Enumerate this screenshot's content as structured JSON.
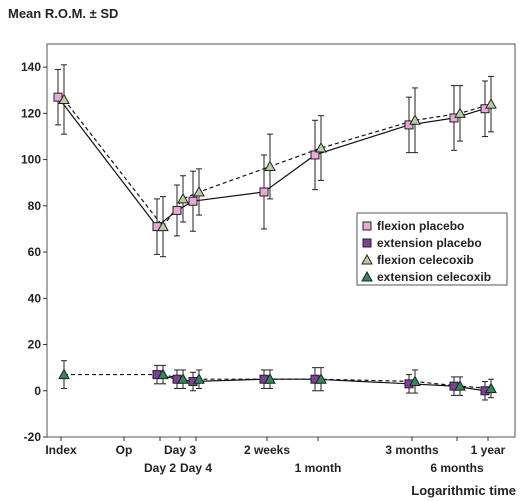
{
  "chart_data": {
    "type": "line",
    "title": "Mean R.O.M. ± SD",
    "xlabel": "Logarithmic time",
    "ylabel": "",
    "ylim": [
      -20,
      150
    ],
    "y_ticks": [
      "-20",
      "0",
      "20",
      "40",
      "60",
      "80",
      "100",
      "120",
      "140"
    ],
    "x_scale": "log",
    "x_ticks_top": [
      "Index",
      "Op",
      "Day 3",
      "2 weeks",
      "3 months",
      "1 year"
    ],
    "x_ticks_bottom": [
      "Day 2",
      "Day 4",
      "1 month",
      "6 months"
    ],
    "grid": false,
    "legend_position": "right",
    "series": [
      {
        "name": "flexion placebo",
        "marker": "square",
        "color": "#e9a8d7",
        "line_style": "solid",
        "x": [
          "Index",
          "Day 2",
          "Day 3",
          "Day 4",
          "2 weeks",
          "1 month",
          "3 months",
          "6 months",
          "1 year"
        ],
        "y": [
          127,
          71,
          78,
          82,
          86,
          102,
          115,
          118,
          122
        ],
        "sd": [
          12,
          12,
          11,
          13,
          16,
          15,
          12,
          14,
          12
        ]
      },
      {
        "name": "extension placebo",
        "marker": "square",
        "color": "#7d3f98",
        "line_style": "solid",
        "x": [
          "Day 2",
          "Day 3",
          "Day 4",
          "2 weeks",
          "1 month",
          "3 months",
          "6 months",
          "1 year"
        ],
        "y": [
          7,
          5,
          4,
          5,
          5,
          3,
          2,
          0
        ],
        "sd": [
          4,
          4,
          4,
          4,
          5,
          4,
          4,
          4
        ]
      },
      {
        "name": "flexion celecoxib",
        "marker": "triangle",
        "color": "#b5cfa0",
        "line_style": "dashed",
        "x": [
          "Index",
          "Day 2",
          "Day 3",
          "Day 4",
          "2 weeks",
          "1 month",
          "3 months",
          "6 months",
          "1 year"
        ],
        "y": [
          126,
          71,
          83,
          86,
          97,
          105,
          117,
          120,
          124
        ],
        "sd": [
          15,
          13,
          10,
          10,
          14,
          14,
          14,
          12,
          12
        ]
      },
      {
        "name": "extension celecoxib",
        "marker": "triangle",
        "color": "#2e8b57",
        "line_style": "dashed",
        "x": [
          "Index",
          "Day 2",
          "Day 3",
          "Day 4",
          "2 weeks",
          "1 month",
          "3 months",
          "6 months",
          "1 year"
        ],
        "y": [
          7,
          7,
          5,
          5,
          5,
          5,
          4,
          2,
          1
        ],
        "sd": [
          6,
          4,
          4,
          4,
          4,
          5,
          5,
          4,
          4
        ]
      }
    ]
  }
}
